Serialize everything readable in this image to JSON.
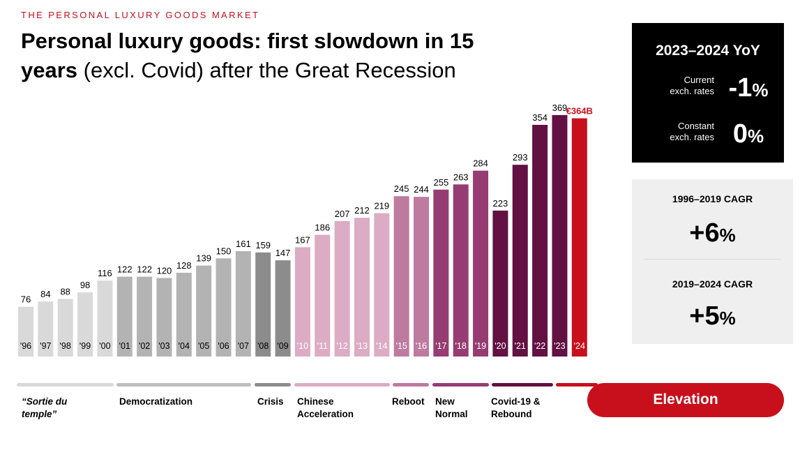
{
  "header": {
    "kicker": "THE PERSONAL LUXURY GOODS MARKET",
    "title_bold_1": "Personal luxury goods: first slowdown in 15",
    "title_bold_2": "years",
    "title_normal": " (excl. Covid) after the Great Recession"
  },
  "yoy_panel": {
    "title": "2023–2024 YoY",
    "current_label_1": "Current",
    "current_label_2": "exch. rates",
    "current_value": "-1",
    "constant_label_1": "Constant",
    "constant_label_2": "exch. rates",
    "constant_value": "0",
    "pct": "%"
  },
  "cagr_panel": {
    "label_1": "1996–2019 CAGR",
    "value_1": "+6",
    "label_2": "2019–2024 CAGR",
    "value_2": "+5",
    "pct": "%"
  },
  "eras": [
    {
      "label_1": "“Sortie du",
      "label_2": "temple”",
      "italic": true,
      "color": "#d9d9d9"
    },
    {
      "label_1": "Democratization",
      "label_2": "",
      "italic": false,
      "color": "#bfbfbf"
    },
    {
      "label_1": "Crisis",
      "label_2": "",
      "italic": false,
      "color": "#8c8c8c"
    },
    {
      "label_1": "Chinese",
      "label_2": "Acceleration",
      "italic": false,
      "color": "#dcabc4"
    },
    {
      "label_1": "Reboot",
      "label_2": "",
      "italic": false,
      "color": "#bf7aa0"
    },
    {
      "label_1": "New",
      "label_2": "Normal",
      "italic": false,
      "color": "#973c72"
    },
    {
      "label_1": "Covid-19 &",
      "label_2": "Rebound",
      "italic": false,
      "color": "#621142"
    },
    {
      "label_1": "",
      "label_2": "",
      "italic": false,
      "color": "#c8101c"
    }
  ],
  "elevation_label": "Elevation",
  "chart_data": {
    "type": "bar",
    "categories": [
      "'96",
      "'97",
      "'98",
      "'99",
      "'00",
      "'01",
      "'02",
      "'03",
      "'04",
      "'05",
      "'06",
      "'07",
      "'08",
      "'09",
      "'10",
      "'11",
      "'12",
      "'13",
      "'14",
      "'15",
      "'16",
      "'17",
      "'18",
      "'19",
      "'20",
      "'21",
      "'22",
      "'23",
      "'24"
    ],
    "values": [
      76,
      84,
      88,
      98,
      116,
      122,
      122,
      120,
      128,
      139,
      150,
      161,
      159,
      147,
      167,
      186,
      207,
      212,
      219,
      245,
      244,
      255,
      263,
      284,
      223,
      293,
      354,
      369,
      364
    ],
    "value_labels": [
      "76",
      "84",
      "88",
      "98",
      "116",
      "122",
      "122",
      "120",
      "128",
      "139",
      "150",
      "161",
      "159",
      "147",
      "167",
      "186",
      "207",
      "212",
      "219",
      "245",
      "244",
      "255",
      "263",
      "284",
      "223",
      "293",
      "354",
      "369",
      "€364B"
    ],
    "bar_colors": [
      "#d9d9d9",
      "#d9d9d9",
      "#d9d9d9",
      "#d9d9d9",
      "#d9d9d9",
      "#b3b3b3",
      "#b3b3b3",
      "#b3b3b3",
      "#b3b3b3",
      "#b3b3b3",
      "#b3b3b3",
      "#b3b3b3",
      "#8c8c8c",
      "#8c8c8c",
      "#dcabc4",
      "#dcabc4",
      "#dcabc4",
      "#dcabc4",
      "#dcabc4",
      "#bf7aa0",
      "#bf7aa0",
      "#973c72",
      "#973c72",
      "#973c72",
      "#621142",
      "#621142",
      "#621142",
      "#621142",
      "#c8101c"
    ],
    "label_colors": [
      "#000000",
      "#000000",
      "#000000",
      "#000000",
      "#000000",
      "#000000",
      "#000000",
      "#000000",
      "#000000",
      "#000000",
      "#000000",
      "#000000",
      "#000000",
      "#000000",
      "#000000",
      "#000000",
      "#000000",
      "#000000",
      "#000000",
      "#000000",
      "#000000",
      "#000000",
      "#000000",
      "#000000",
      "#000000",
      "#000000",
      "#000000",
      "#000000",
      "#c8101c"
    ],
    "tick_colors": [
      "#000000",
      "#000000",
      "#000000",
      "#000000",
      "#000000",
      "#000000",
      "#000000",
      "#000000",
      "#000000",
      "#000000",
      "#000000",
      "#000000",
      "#000000",
      "#000000",
      "#ffffff",
      "#ffffff",
      "#ffffff",
      "#ffffff",
      "#ffffff",
      "#ffffff",
      "#ffffff",
      "#ffffff",
      "#ffffff",
      "#ffffff",
      "#ffffff",
      "#ffffff",
      "#ffffff",
      "#ffffff",
      "#ffffff"
    ],
    "title": "",
    "xlabel": "",
    "ylabel": "",
    "grid": false,
    "legend": "none"
  }
}
